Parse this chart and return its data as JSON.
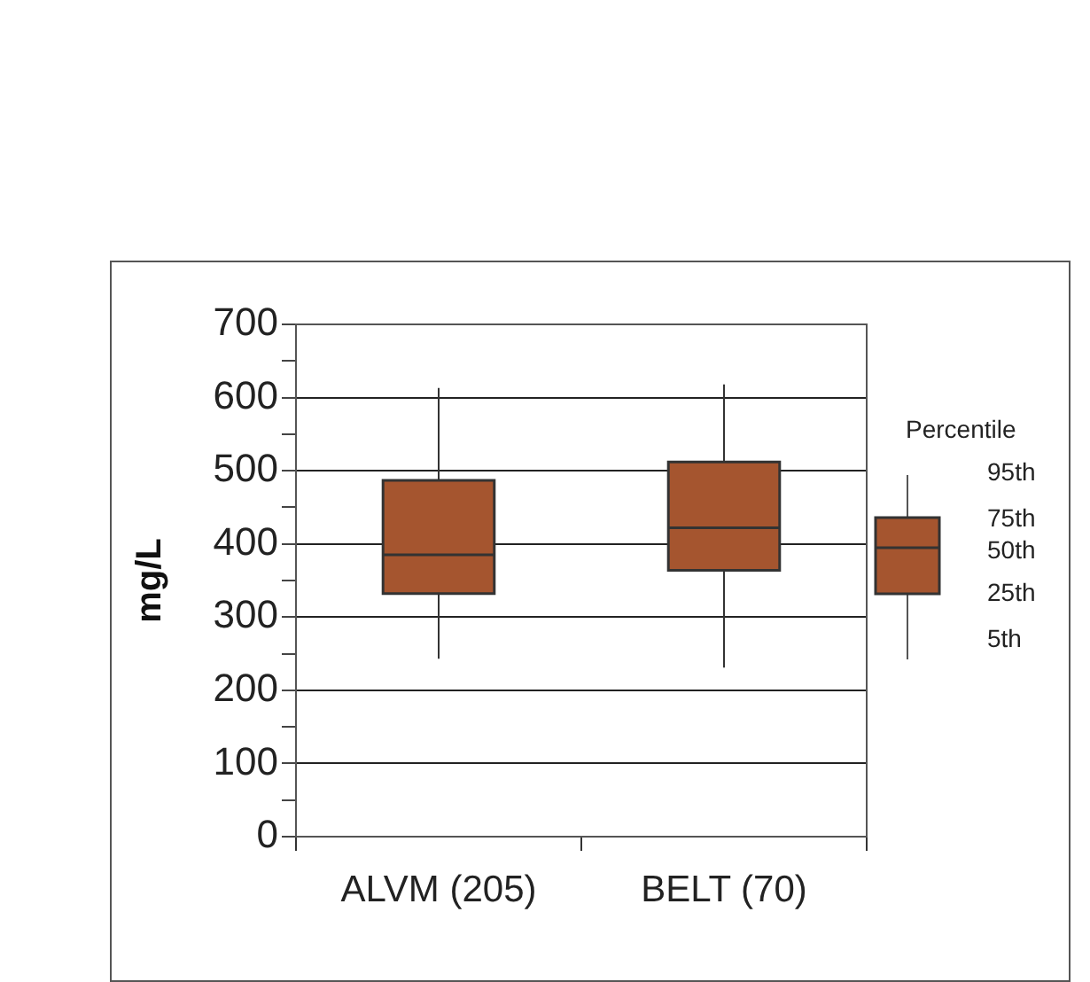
{
  "chart_data": {
    "type": "box",
    "ylabel": "mg/L",
    "categories": [
      "ALVM (205)",
      "BELT (70)"
    ],
    "boxes": [
      {
        "low": 243,
        "q1": 332,
        "median": 385,
        "q3": 487,
        "high": 613
      },
      {
        "low": 231,
        "q1": 364,
        "median": 422,
        "q3": 512,
        "high": 618
      }
    ],
    "color": "#a5552f",
    "ylim": [
      0,
      700
    ],
    "yticks": [
      0,
      {
        "value": 50,
        "label": null
      },
      100,
      {
        "value": 150,
        "label": null
      },
      200,
      {
        "value": 250,
        "label": null
      },
      300,
      {
        "value": 350,
        "label": null
      },
      400,
      {
        "value": 450,
        "label": null
      },
      500,
      {
        "value": 550,
        "label": null
      },
      600,
      {
        "value": 650,
        "label": null
      },
      700
    ],
    "grid": "y",
    "legend_title": "Percentile",
    "annotations": [
      "95th",
      "75th",
      "50th",
      "25th",
      "5th"
    ]
  }
}
